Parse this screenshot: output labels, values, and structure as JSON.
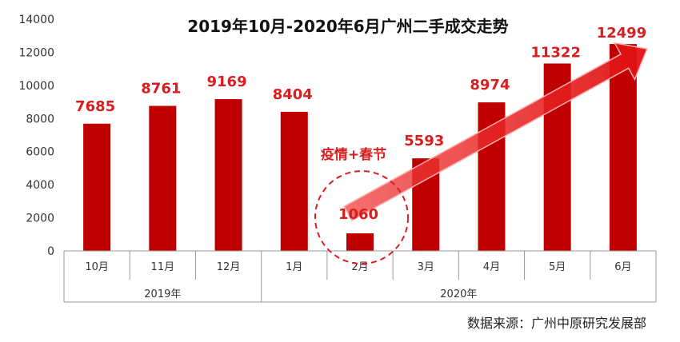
{
  "chart_data": {
    "type": "bar",
    "title": "2019年10月-2020年6月广州二手成交走势",
    "categories": [
      "10月",
      "11月",
      "12月",
      "1月",
      "2月",
      "3月",
      "4月",
      "5月",
      "6月"
    ],
    "groups": [
      {
        "label": "2019年",
        "span": 3
      },
      {
        "label": "2020年",
        "span": 6
      }
    ],
    "values": [
      7685,
      8761,
      9169,
      8404,
      1060,
      5593,
      8974,
      11322,
      12499
    ],
    "ylim": [
      0,
      14000
    ],
    "yticks": [
      0,
      2000,
      4000,
      6000,
      8000,
      10000,
      12000,
      14000
    ],
    "data_labels": [
      "7685",
      "8761",
      "9169",
      "8404",
      "1060",
      "5593",
      "8974",
      "11322",
      "12499"
    ],
    "ytick_labels": [
      "0",
      "2000",
      "4000",
      "6000",
      "8000",
      "10000",
      "12000",
      "14000"
    ],
    "annotation": "疫情+春节",
    "grid": false,
    "colors": {
      "bar": "#c00000",
      "label": "#d81e1e",
      "arrow": "#e83030"
    }
  },
  "source": "数据来源：广州中原研究发展部"
}
